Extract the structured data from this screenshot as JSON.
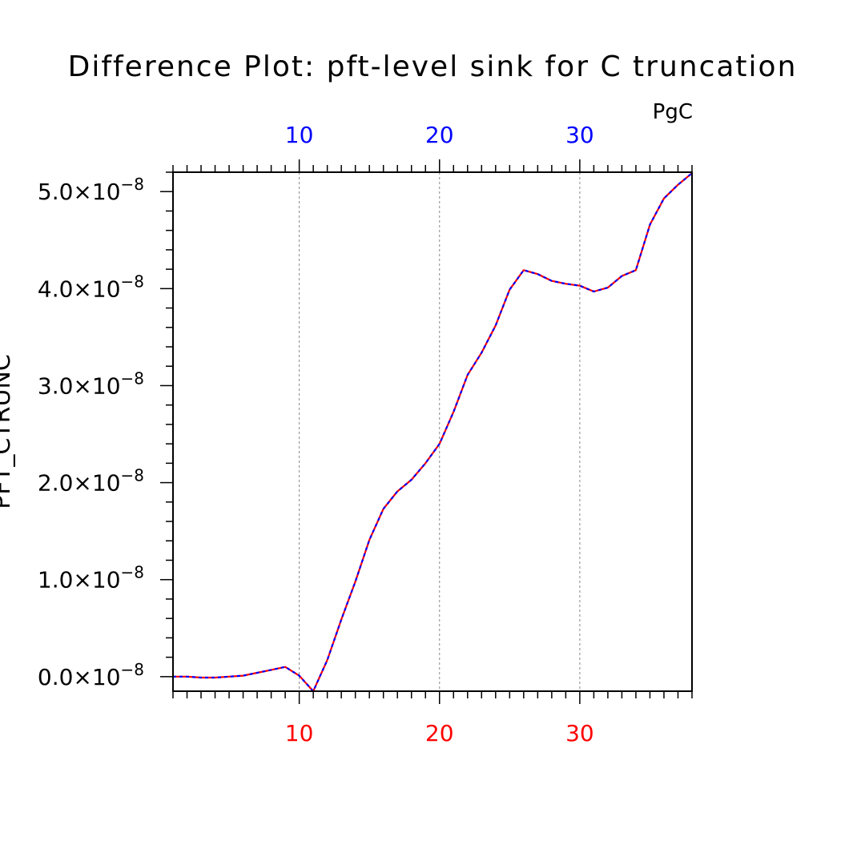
{
  "chart_data": {
    "type": "line",
    "title": "Difference Plot: pft-level sink for C truncation",
    "ylabel": "PFT_CTRUNC",
    "units": "PgC",
    "xlim": [
      1,
      38
    ],
    "ylim": [
      -0.15,
      5.2
    ],
    "y_exponent_suffix": "×10",
    "y_exponent": "−8",
    "y_ticks": [
      0,
      1,
      2,
      3,
      4,
      5
    ],
    "y_tick_labels": [
      "0.0",
      "1.0",
      "2.0",
      "3.0",
      "4.0",
      "5.0"
    ],
    "x_ticks_labeled": [
      10,
      20,
      30
    ],
    "x_tick_labels": [
      "10",
      "20",
      "30"
    ],
    "grid_x": [
      10,
      20,
      30
    ],
    "colors": {
      "series_a": "#ff0000",
      "series_b": "#0000ff",
      "top_axis": "#0000ff",
      "bottom_axis": "#ff0000",
      "grid": "#888888"
    },
    "x": [
      1,
      2,
      3,
      4,
      5,
      6,
      7,
      8,
      9,
      10,
      11,
      12,
      13,
      14,
      15,
      16,
      17,
      18,
      19,
      20,
      21,
      22,
      23,
      24,
      25,
      26,
      27,
      28,
      29,
      30,
      31,
      32,
      33,
      34,
      35,
      36,
      37,
      38
    ],
    "series": [
      {
        "name": "",
        "values": [
          0.0,
          0.0,
          -0.01,
          -0.01,
          0.0,
          0.01,
          0.04,
          0.07,
          0.1,
          0.01,
          -0.15,
          0.17,
          0.59,
          0.98,
          1.41,
          1.73,
          1.91,
          2.03,
          2.2,
          2.4,
          2.73,
          3.11,
          3.34,
          3.62,
          3.99,
          4.19,
          4.15,
          4.08,
          4.05,
          4.03,
          3.97,
          4.01,
          4.13,
          4.19,
          4.66,
          4.93,
          5.07,
          5.19
        ]
      },
      {
        "name": "",
        "values": [
          0.0,
          0.0,
          -0.01,
          -0.01,
          0.0,
          0.01,
          0.04,
          0.07,
          0.1,
          0.01,
          -0.15,
          0.17,
          0.59,
          0.98,
          1.41,
          1.73,
          1.91,
          2.03,
          2.2,
          2.4,
          2.73,
          3.11,
          3.34,
          3.62,
          3.99,
          4.19,
          4.15,
          4.08,
          4.05,
          4.03,
          3.97,
          4.01,
          4.13,
          4.19,
          4.66,
          4.93,
          5.07,
          5.19
        ]
      }
    ]
  }
}
